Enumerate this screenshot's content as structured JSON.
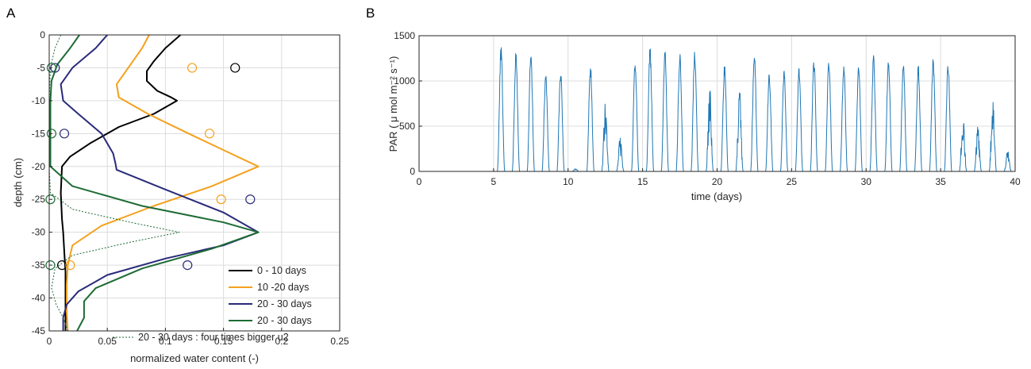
{
  "chart_data": [
    {
      "panel_label": "A",
      "type": "line",
      "xlabel": "normalized water content (-)",
      "ylabel": "depth (cm)",
      "xlim": [
        0,
        0.25
      ],
      "ylim": [
        -45,
        0
      ],
      "xticks": [
        0,
        0.05,
        0.1,
        0.15,
        0.2,
        0.25
      ],
      "xtick_labels": [
        "0",
        "0.05",
        "0.1",
        "0.15",
        "0.2",
        "0.25"
      ],
      "yticks": [
        0,
        -5,
        -10,
        -15,
        -20,
        -25,
        -30,
        -35,
        -40,
        -45
      ],
      "ytick_labels": [
        "0",
        "-5",
        "-10",
        "-15",
        "-20",
        "-25",
        "-30",
        "-35",
        "-40",
        "-45"
      ],
      "grid": true,
      "legend_position": "bottom-right",
      "series": [
        {
          "name": "0 - 10 days",
          "color": "#000000",
          "style": "solid",
          "x": [
            0.113,
            0.1,
            0.09,
            0.084,
            0.084,
            0.093,
            0.105,
            0.11,
            0.09,
            0.06,
            0.035,
            0.018,
            0.011,
            0.01,
            0.011,
            0.012,
            0.013,
            0.014,
            0.014,
            0.014
          ],
          "y": [
            0,
            -2,
            -4,
            -5.5,
            -7,
            -8.5,
            -9.5,
            -10,
            -12,
            -14,
            -16.5,
            -18.5,
            -20,
            -24,
            -28,
            -30,
            -33,
            -36,
            -40,
            -45
          ]
        },
        {
          "name": "10 -20 days",
          "color": "#f4a11d",
          "style": "solid",
          "x": [
            0.086,
            0.08,
            0.068,
            0.058,
            0.06,
            0.085,
            0.12,
            0.15,
            0.18,
            0.14,
            0.09,
            0.045,
            0.02,
            0.016,
            0.015,
            0.015,
            0.016
          ],
          "y": [
            0,
            -2,
            -5,
            -7.5,
            -9.5,
            -12,
            -15,
            -17.5,
            -20,
            -23,
            -26,
            -29,
            -32,
            -35,
            -38,
            -42,
            -45
          ]
        },
        {
          "name": "20 - 30 days",
          "color": "#2a2a7a",
          "style": "solid",
          "x": [
            0.05,
            0.04,
            0.02,
            0.01,
            0.012,
            0.025,
            0.045,
            0.055,
            0.057,
            0.058,
            0.1,
            0.15,
            0.18,
            0.15,
            0.1,
            0.05,
            0.025,
            0.015,
            0.012,
            0.012
          ],
          "y": [
            0,
            -2,
            -5,
            -7.5,
            -10,
            -12,
            -15,
            -18,
            -19.5,
            -20.5,
            -23.5,
            -27,
            -30,
            -32,
            -34,
            -36.5,
            -39,
            -41,
            -43,
            -45
          ]
        },
        {
          "name": "20 - 30 days",
          "color": "#1e6b35",
          "style": "solid",
          "x": [
            0.026,
            0.018,
            0.007,
            0.002,
            0.001,
            0.001,
            0.001,
            0.02,
            0.08,
            0.15,
            0.18,
            0.14,
            0.08,
            0.04,
            0.03,
            0.03,
            0.024
          ],
          "y": [
            0,
            -2,
            -4.5,
            -7,
            -10,
            -15,
            -20,
            -23,
            -26,
            -28.5,
            -30,
            -32.5,
            -35.5,
            -38.5,
            -40.5,
            -43,
            -45
          ]
        },
        {
          "name": "20 - 30 days :  four times bigger u2",
          "color": "#1e6b35",
          "style": "dotted",
          "x": [
            0.01,
            0.005,
            0.001,
            0.0,
            0.0,
            0.001,
            0.02,
            0.07,
            0.112,
            0.07,
            0.02,
            0.005,
            0.002,
            0.006,
            0.012,
            0.016
          ],
          "y": [
            0,
            -2,
            -5,
            -10,
            -20,
            -24,
            -26.5,
            -28.5,
            -30,
            -31.5,
            -33.5,
            -35.5,
            -38.5,
            -41,
            -43,
            -45
          ]
        }
      ],
      "markers": [
        {
          "color": "#000000",
          "points": [
            [
              0.16,
              -5
            ],
            [
              0.011,
              -35
            ]
          ]
        },
        {
          "color": "#f4a11d",
          "points": [
            [
              0.123,
              -5
            ],
            [
              0.138,
              -15
            ],
            [
              0.148,
              -25
            ],
            [
              0.018,
              -35
            ]
          ]
        },
        {
          "color": "#2a2a7a",
          "points": [
            [
              0.005,
              -5
            ],
            [
              0.013,
              -15
            ],
            [
              0.173,
              -25
            ],
            [
              0.119,
              -35
            ]
          ]
        },
        {
          "color": "#1e6b35",
          "points": [
            [
              0.002,
              -5
            ],
            [
              0.002,
              -15
            ],
            [
              0.001,
              -25
            ],
            [
              0.001,
              -35
            ]
          ]
        }
      ]
    },
    {
      "panel_label": "B",
      "type": "line",
      "xlabel": "time (days)",
      "ylabel": "PAR ( μ mol m⁻² s⁻¹)",
      "xlim": [
        0,
        40
      ],
      "ylim": [
        0,
        1500
      ],
      "xticks": [
        0,
        5,
        10,
        15,
        20,
        25,
        30,
        35,
        40
      ],
      "xtick_labels": [
        "0",
        "5",
        "10",
        "15",
        "20",
        "25",
        "30",
        "35",
        "40"
      ],
      "yticks": [
        0,
        500,
        1000,
        1500
      ],
      "ytick_labels": [
        "0",
        "500",
        "1000",
        "1500"
      ],
      "grid": true,
      "series": [
        {
          "color": "#1f77b4",
          "style": "solid",
          "day_centers": [
            5.5,
            6.5,
            7.5,
            8.5,
            9.5,
            10.5,
            11.5,
            12.5,
            13.5,
            14.5,
            15.5,
            16.5,
            17.5,
            18.5,
            19.5,
            20.5,
            21.5,
            22.5,
            23.5,
            24.5,
            25.5,
            26.5,
            27.5,
            28.5,
            29.5,
            30.5,
            31.5,
            32.5,
            33.5,
            34.5,
            35.5,
            36.5,
            37.5,
            38.5,
            39.5
          ],
          "daily_peaks": [
            1400,
            1330,
            1330,
            1100,
            1150,
            30,
            1200,
            760,
            380,
            1250,
            1380,
            1340,
            1320,
            1380,
            970,
            1200,
            920,
            1360,
            1100,
            1130,
            1180,
            1260,
            1270,
            1210,
            1170,
            1290,
            1250,
            1240,
            1200,
            1270,
            1230,
            640,
            500,
            870,
            260
          ]
        }
      ]
    }
  ]
}
